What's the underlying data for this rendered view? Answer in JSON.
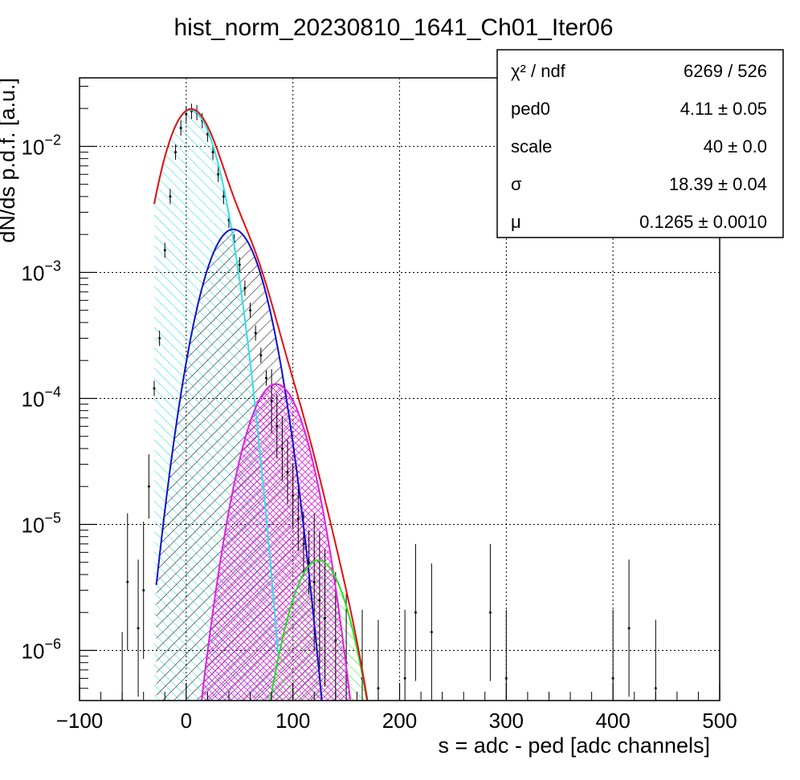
{
  "chart_data": {
    "type": "histogram-fit",
    "title": "hist_norm_20230810_1641_Ch01_Iter06",
    "xlabel": "s = adc - ped [adc channels]",
    "ylabel": "dN/ds p.d.f. [a.u.]",
    "xlim": [
      -100,
      500
    ],
    "ylim": [
      4e-07,
      0.035
    ],
    "yscale": "log",
    "grid": true,
    "x_ticks": [
      -100,
      0,
      100,
      200,
      300,
      400,
      500
    ],
    "x_tick_labels": [
      "−100",
      "0",
      "100",
      "200",
      "300",
      "400",
      "500"
    ],
    "y_ticks": [
      {
        "value": 1e-06,
        "mant": "10",
        "exp": "−6"
      },
      {
        "value": 1e-05,
        "mant": "10",
        "exp": "−5"
      },
      {
        "value": 0.0001,
        "mant": "10",
        "exp": "−4"
      },
      {
        "value": 0.001,
        "mant": "10",
        "exp": "−3"
      },
      {
        "value": 0.01,
        "mant": "10",
        "exp": "−2"
      }
    ],
    "stats": [
      {
        "label": "χ² / ndf",
        "value": "6269 / 526"
      },
      {
        "label": "ped0",
        "value": "4.11 ± 0.05"
      },
      {
        "label": "scale",
        "value": "40 ± 0.0"
      },
      {
        "label": "σ",
        "value": "18.39 ± 0.04"
      },
      {
        "label": "μ",
        "value": "0.1265 ± 0.0010"
      }
    ],
    "fit_parameters": {
      "ped0": 4.11,
      "scale": 40,
      "sigma": 18.39,
      "mu": 0.1265
    },
    "components": [
      {
        "n": 0,
        "color": "#33e0e8",
        "mean": 4.11,
        "sigma": 18.39,
        "peak": 0.0195,
        "x_from": -30,
        "x_to": 86
      },
      {
        "n": 1,
        "color": "#1010c8",
        "mean": 44.11,
        "sigma": 20.0,
        "peak": 0.0022,
        "x_from": -28,
        "x_to": 130
      },
      {
        "n": 2,
        "color": "#e020e0",
        "mean": 84.11,
        "sigma": 20.5,
        "peak": 0.00013,
        "x_from": 10,
        "x_to": 160
      },
      {
        "n": 3,
        "color": "#20e020",
        "mean": 124.11,
        "sigma": 20.0,
        "peak": 5.2e-06,
        "x_from": 75,
        "x_to": 175
      }
    ],
    "total_fit_color": "#e01010",
    "data_points": [
      [
        -60,
        4e-07
      ],
      [
        -55,
        3.5e-06
      ],
      [
        -45,
        1.5e-06
      ],
      [
        -40,
        3e-06
      ],
      [
        -35,
        2e-05
      ],
      [
        -30,
        0.00012
      ],
      [
        -25,
        0.0003
      ],
      [
        -20,
        0.0015
      ],
      [
        -15,
        0.004
      ],
      [
        -10,
        0.009
      ],
      [
        -5,
        0.014
      ],
      [
        0,
        0.018
      ],
      [
        5,
        0.019
      ],
      [
        10,
        0.0185
      ],
      [
        15,
        0.016
      ],
      [
        20,
        0.0125
      ],
      [
        25,
        0.009
      ],
      [
        30,
        0.006
      ],
      [
        35,
        0.004
      ],
      [
        40,
        0.0026
      ],
      [
        45,
        0.00175
      ],
      [
        50,
        0.00115
      ],
      [
        55,
        0.00075
      ],
      [
        60,
        0.0005
      ],
      [
        65,
        0.00033
      ],
      [
        70,
        0.00022
      ],
      [
        75,
        0.000145
      ],
      [
        80,
        9.5e-05
      ],
      [
        85,
        6e-05
      ],
      [
        90,
        4e-05
      ],
      [
        95,
        2.6e-05
      ],
      [
        100,
        1.7e-05
      ],
      [
        105,
        1.1e-05
      ],
      [
        110,
        7e-06
      ],
      [
        115,
        5e-06
      ],
      [
        120,
        3.5e-06
      ],
      [
        125,
        2.5e-06
      ],
      [
        130,
        1.8e-06
      ],
      [
        140,
        1.2e-06
      ],
      [
        150,
        8e-07
      ],
      [
        165,
        6e-07
      ],
      [
        180,
        5e-07
      ],
      [
        205,
        6e-07
      ],
      [
        215,
        2e-06
      ],
      [
        230,
        1.4e-06
      ],
      [
        285,
        2e-06
      ],
      [
        300,
        6e-07
      ],
      [
        400,
        6e-07
      ],
      [
        415,
        1.5e-06
      ],
      [
        440,
        5e-07
      ]
    ]
  }
}
